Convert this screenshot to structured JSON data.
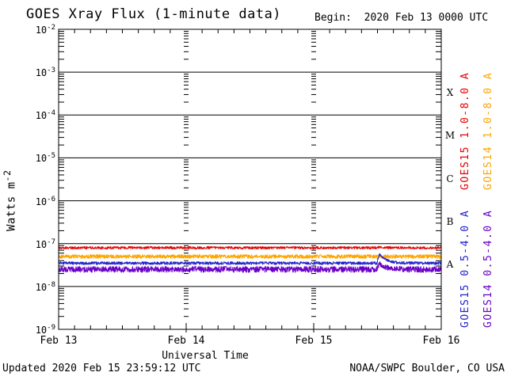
{
  "title": "GOES Xray Flux (1-minute data)",
  "begin_label": "Begin:  2020 Feb 13 0000 UTC",
  "footer": {
    "updated": "Updated 2020 Feb 15 23:59:12 UTC",
    "source": "NOAA/SWPC Boulder, CO USA"
  },
  "axes": {
    "y_label_base": "Watts m",
    "y_label_exp": "-2",
    "x_label": "Universal Time",
    "y_tick_base": "10",
    "y_tick_exponents": [
      -2,
      -3,
      -4,
      -5,
      -6,
      -7,
      -8,
      -9
    ],
    "x_tick_labels": [
      "Feb 13",
      "Feb 14",
      "Feb 15",
      "Feb 16"
    ],
    "class_letters": [
      "X",
      "M",
      "C",
      "B",
      "A"
    ]
  },
  "legend": [
    {
      "label": "GOES15 1.0-8.0 A",
      "color": "#e40000",
      "column": 1,
      "slot": "top"
    },
    {
      "label": "GOES14 1.0-8.0 A",
      "color": "#ffa500",
      "column": 2,
      "slot": "top"
    },
    {
      "label": "GOES15 0.5-4.0 A",
      "color": "#2222cc",
      "column": 1,
      "slot": "bottom"
    },
    {
      "label": "GOES14 0.5-4.0 A",
      "color": "#6a00c8",
      "column": 2,
      "slot": "bottom"
    }
  ],
  "chart_data": {
    "type": "line",
    "title": "GOES Xray Flux (1-minute data)",
    "x_range_hours": [
      0,
      72
    ],
    "x_days": [
      "Feb 13",
      "Feb 14",
      "Feb 15",
      "Feb 16"
    ],
    "hour_tick_step": 3,
    "y_scale": "log",
    "ylim": [
      1e-09,
      0.01
    ],
    "grid": "solid horizontal decade lines; dashed vertical day boundaries",
    "series": [
      {
        "name": "GOES15 1.0-8.0 A",
        "color": "#e40000",
        "baseline_wm2": 8e-08,
        "noise_log": 0.03,
        "flare_peak_add_wm2": 3e-09,
        "z": 4
      },
      {
        "name": "GOES14 1.0-8.0 A",
        "color": "#ffa500",
        "baseline_wm2": 5e-08,
        "noise_log": 0.045,
        "flare_peak_add_wm2": 1e-09,
        "z": 2
      },
      {
        "name": "GOES15 0.5-4.0 A",
        "color": "#2222cc",
        "baseline_wm2": 3.5e-08,
        "noise_log": 0.035,
        "flare_peak_add_wm2": 2.2e-08,
        "z": 3
      },
      {
        "name": "GOES14 0.5-4.0 A",
        "color": "#6a00c8",
        "baseline_wm2": 2.5e-08,
        "noise_log": 0.07,
        "flare_peak_add_wm2": 9e-09,
        "z": 1
      }
    ],
    "flare_event": {
      "date": "Feb 15",
      "start_hour": 59.9,
      "peak_hour": 60.4,
      "decay_tau_hours": 1.1
    }
  }
}
